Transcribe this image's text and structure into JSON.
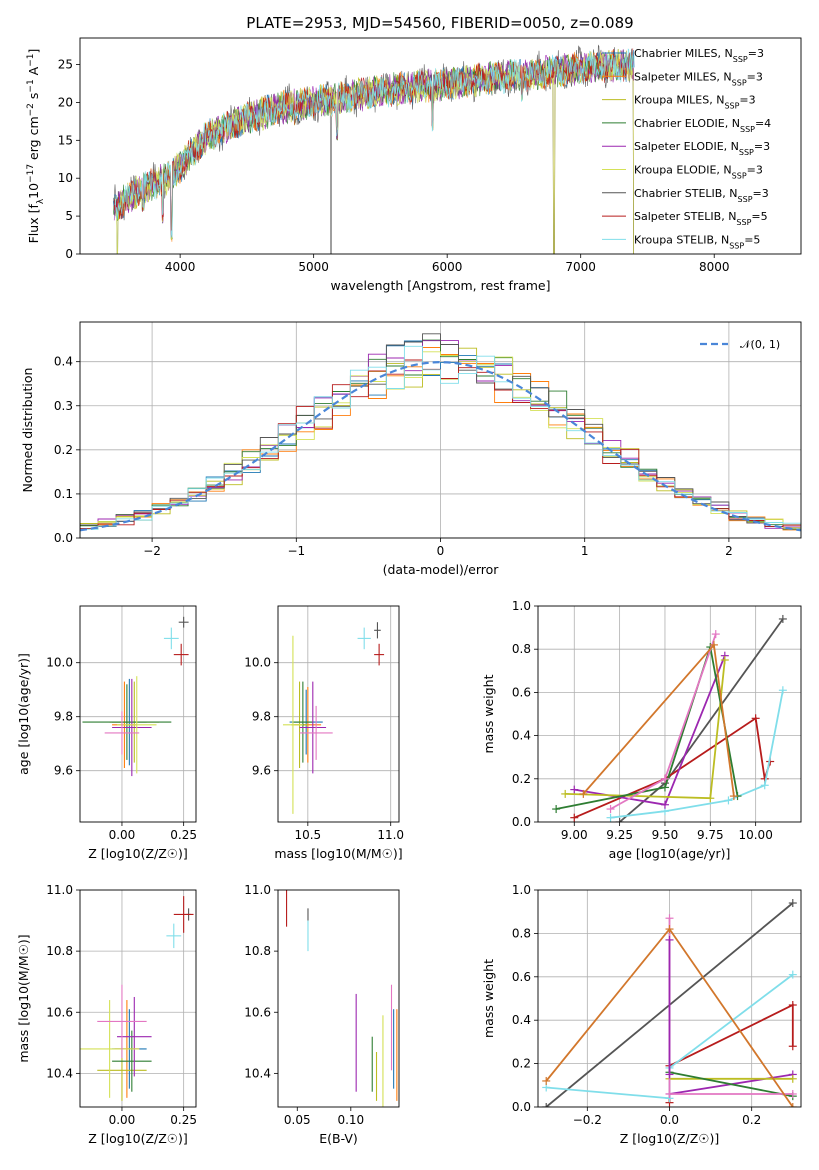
{
  "title": "PLATE=2953, MJD=54560, FIBERID=0050, z=0.089",
  "colors": [
    "#1f77b4",
    "#ff7f0e",
    "#bcbd22",
    "#2e7d32",
    "#9c27b0",
    "#d4e157",
    "#555555",
    "#b71c1c",
    "#80deea"
  ],
  "chart_data": [
    {
      "id": "spectrum",
      "type": "line",
      "xlabel": "wavelength [Angstrom, rest frame]",
      "ylabel": "Flux [f_λ10^-17 erg cm^-2 s^-1 A^-1]",
      "xlim": [
        3250,
        8650
      ],
      "ylim": [
        0,
        28.5
      ],
      "xticks": [
        4000,
        5000,
        6000,
        7000,
        8000
      ],
      "yticks": [
        0,
        5,
        10,
        15,
        20,
        25
      ],
      "legend_position": "top-right",
      "legend": [
        {
          "base": "Chabrier MILES, N",
          "sub": "SSP",
          "tail": "=3"
        },
        {
          "base": "Salpeter MILES, N",
          "sub": "SSP",
          "tail": "=3"
        },
        {
          "base": "Kroupa MILES, N",
          "sub": "SSP",
          "tail": "=3"
        },
        {
          "base": "Chabrier ELODIE, N",
          "sub": "SSP",
          "tail": "=4"
        },
        {
          "base": "Salpeter ELODIE, N",
          "sub": "SSP",
          "tail": "=3"
        },
        {
          "base": "Kroupa ELODIE, N",
          "sub": "SSP",
          "tail": "=3"
        },
        {
          "base": "Chabrier STELIB, N",
          "sub": "SSP",
          "tail": "=3"
        },
        {
          "base": "Salpeter STELIB, N",
          "sub": "SSP",
          "tail": "=5"
        },
        {
          "base": "Kroupa STELIB, N",
          "sub": "SSP",
          "tail": "=5"
        }
      ],
      "continuum": [
        [
          3500,
          6
        ],
        [
          3700,
          8.5
        ],
        [
          3900,
          10
        ],
        [
          4000,
          11.5
        ],
        [
          4200,
          15.5
        ],
        [
          4500,
          18
        ],
        [
          4800,
          19.5
        ],
        [
          5000,
          20
        ],
        [
          5500,
          21.5
        ],
        [
          6000,
          22.5
        ],
        [
          6500,
          23.5
        ],
        [
          7000,
          24.5
        ],
        [
          7400,
          25
        ]
      ],
      "dips": [
        [
          3530,
          0
        ],
        [
          3600,
          6.5
        ],
        [
          3720,
          5.5
        ],
        [
          3870,
          4
        ],
        [
          3935,
          1.5
        ],
        [
          4090,
          13
        ],
        [
          4340,
          16
        ],
        [
          4860,
          17
        ],
        [
          5130,
          0
        ],
        [
          5175,
          15
        ],
        [
          5890,
          16
        ],
        [
          6560,
          20
        ],
        [
          6800,
          0
        ],
        [
          7400,
          0
        ]
      ]
    },
    {
      "id": "residuals",
      "type": "histogram",
      "xlabel": "(data-model)/error",
      "ylabel": "Normed distribution",
      "xlim": [
        -2.5,
        2.5
      ],
      "ylim": [
        0,
        0.49
      ],
      "xticks": [
        -2,
        -1,
        0,
        1,
        2
      ],
      "yticks": [
        0.0,
        0.1,
        0.2,
        0.3,
        0.4
      ],
      "grid": true,
      "bins": 40,
      "legend_position": "top-right",
      "legend_label": "𝒩(0, 1)"
    },
    {
      "id": "age-vs-Z",
      "type": "scatter",
      "xlabel": "Z [log10(Z/Z☉)]",
      "ylabel": "age  [log10(age/yr)]",
      "xlim": [
        -0.17,
        0.3
      ],
      "ylim": [
        9.41,
        10.21
      ],
      "xticks": [
        0.0,
        0.25
      ],
      "yticks": [
        9.6,
        9.8,
        10.0
      ],
      "grid": true,
      "points": [
        {
          "x": 0.03,
          "y": 9.78,
          "ex": 0.07,
          "ey": 0.16
        },
        {
          "x": 0.01,
          "y": 9.77,
          "ex": 0.05,
          "ey": 0.16
        },
        {
          "x": 0.05,
          "y": 9.78,
          "ex": 0.1,
          "ey": 0.15
        },
        {
          "x": 0.02,
          "y": 9.78,
          "ex": 0.18,
          "ey": 0.14
        },
        {
          "x": 0.04,
          "y": 9.76,
          "ex": 0.08,
          "ey": 0.18
        },
        {
          "x": 0.06,
          "y": 9.77,
          "ex": 0.08,
          "ey": 0.18
        },
        {
          "x": 0.25,
          "y": 10.15,
          "ex": 0.02,
          "ey": 0.02
        },
        {
          "x": 0.24,
          "y": 10.03,
          "ex": 0.03,
          "ey": 0.04
        },
        {
          "x": 0.2,
          "y": 10.09,
          "ex": 0.03,
          "ey": 0.04
        },
        {
          "x": 0.0,
          "y": 9.74,
          "ex": 0.07,
          "ey": 0.08
        }
      ]
    },
    {
      "id": "age-vs-mass",
      "type": "scatter",
      "xlabel": "mass [log10(M/M☉)]",
      "ylabel": "",
      "xlim": [
        10.32,
        11.05
      ],
      "ylim": [
        9.41,
        10.21
      ],
      "xticks": [
        10.5,
        11.0
      ],
      "yticks": [
        9.6,
        9.8,
        10.0
      ],
      "grid": true,
      "points": [
        {
          "x": 10.49,
          "y": 9.78,
          "ex": 0.1,
          "ey": 0.12
        },
        {
          "x": 10.5,
          "y": 9.77,
          "ex": 0.08,
          "ey": 0.14
        },
        {
          "x": 10.45,
          "y": 9.77,
          "ex": 0.05,
          "ey": 0.16
        },
        {
          "x": 10.47,
          "y": 9.78,
          "ex": 0.06,
          "ey": 0.15
        },
        {
          "x": 10.53,
          "y": 9.76,
          "ex": 0.08,
          "ey": 0.17
        },
        {
          "x": 10.41,
          "y": 9.77,
          "ex": 0.06,
          "ey": 0.33
        },
        {
          "x": 10.92,
          "y": 10.12,
          "ex": 0.02,
          "ey": 0.03
        },
        {
          "x": 10.93,
          "y": 10.03,
          "ex": 0.03,
          "ey": 0.04
        },
        {
          "x": 10.84,
          "y": 10.09,
          "ex": 0.04,
          "ey": 0.04
        },
        {
          "x": 10.55,
          "y": 9.74,
          "ex": 0.1,
          "ey": 0.1
        }
      ]
    },
    {
      "id": "mass-weight-vs-age",
      "type": "line",
      "xlabel": "age  [log10(age/yr)]",
      "ylabel": "mass weight",
      "xlim": [
        8.8,
        10.25
      ],
      "ylim": [
        0,
        1.0
      ],
      "xticks": [
        9.0,
        9.25,
        9.5,
        9.75,
        10.0
      ],
      "yticks": [
        0.0,
        0.2,
        0.4,
        0.6,
        0.8,
        1.0
      ],
      "grid": true,
      "series": [
        {
          "color": "#555555",
          "points": [
            [
              9.25,
              0.0
            ],
            [
              9.5,
              0.18
            ],
            [
              10.15,
              0.94
            ]
          ]
        },
        {
          "color": "#b71c1c",
          "points": [
            [
              9.0,
              0.02
            ],
            [
              9.5,
              0.2
            ],
            [
              10.0,
              0.48
            ],
            [
              10.05,
              0.2
            ],
            [
              10.08,
              0.28
            ]
          ]
        },
        {
          "color": "#80deea",
          "points": [
            [
              9.2,
              0.02
            ],
            [
              9.5,
              0.05
            ],
            [
              9.85,
              0.1
            ],
            [
              10.05,
              0.17
            ],
            [
              10.15,
              0.61
            ]
          ]
        },
        {
          "color": "#9c27b0",
          "points": [
            [
              9.0,
              0.15
            ],
            [
              9.5,
              0.08
            ],
            [
              9.83,
              0.77
            ]
          ]
        },
        {
          "color": "#bcbd22",
          "points": [
            [
              8.95,
              0.13
            ],
            [
              9.75,
              0.11
            ],
            [
              9.83,
              0.75
            ]
          ]
        },
        {
          "color": "#2e7d32",
          "points": [
            [
              8.9,
              0.06
            ],
            [
              9.5,
              0.16
            ],
            [
              9.75,
              0.81
            ],
            [
              9.9,
              0.12
            ]
          ]
        },
        {
          "color": "#e377c2",
          "points": [
            [
              9.2,
              0.06
            ],
            [
              9.5,
              0.2
            ],
            [
              9.78,
              0.87
            ]
          ]
        },
        {
          "color": "#d2772c",
          "points": [
            [
              9.05,
              0.13
            ],
            [
              9.77,
              0.82
            ],
            [
              9.88,
              0.12
            ]
          ]
        }
      ]
    },
    {
      "id": "mass-vs-Z",
      "type": "scatter",
      "xlabel": "Z [log10(Z/Z☉)]",
      "ylabel": "mass [log10(M/M☉)]",
      "xlim": [
        -0.17,
        0.3
      ],
      "ylim": [
        10.29,
        11.0
      ],
      "xticks": [
        0.0,
        0.25
      ],
      "yticks": [
        10.4,
        10.6,
        10.8,
        11.0
      ],
      "grid": true,
      "points": [
        {
          "x": 0.03,
          "y": 10.48,
          "ex": 0.07,
          "ey": 0.13
        },
        {
          "x": 0.02,
          "y": 10.48,
          "ex": 0.05,
          "ey": 0.16
        },
        {
          "x": 0.0,
          "y": 10.41,
          "ex": 0.1,
          "ey": 0.1
        },
        {
          "x": 0.04,
          "y": 10.44,
          "ex": 0.08,
          "ey": 0.1
        },
        {
          "x": 0.05,
          "y": 10.52,
          "ex": 0.07,
          "ey": 0.13
        },
        {
          "x": -0.05,
          "y": 10.48,
          "ex": 0.12,
          "ey": 0.16
        },
        {
          "x": 0.27,
          "y": 10.92,
          "ex": 0.01,
          "ey": 0.02
        },
        {
          "x": 0.25,
          "y": 10.92,
          "ex": 0.04,
          "ey": 0.06
        },
        {
          "x": 0.21,
          "y": 10.85,
          "ex": 0.03,
          "ey": 0.04
        },
        {
          "x": 0.0,
          "y": 10.57,
          "ex": 0.1,
          "ey": 0.12
        }
      ]
    },
    {
      "id": "mass-vs-EBV",
      "type": "scatter",
      "xlabel": "E(B-V)",
      "ylabel": "",
      "xlim": [
        0.032,
        0.145
      ],
      "ylim": [
        10.29,
        11.0
      ],
      "xticks": [
        0.05,
        0.1
      ],
      "yticks": [
        10.4,
        10.6,
        10.8,
        11.0
      ],
      "grid": false,
      "points": [
        {
          "x": 0.14,
          "y": 10.48,
          "ex": 0,
          "ey": 0.13
        },
        {
          "x": 0.143,
          "y": 10.46,
          "ex": 0,
          "ey": 0.15
        },
        {
          "x": 0.124,
          "y": 10.39,
          "ex": 0,
          "ey": 0.08
        },
        {
          "x": 0.12,
          "y": 10.43,
          "ex": 0,
          "ey": 0.09
        },
        {
          "x": 0.105,
          "y": 10.5,
          "ex": 0,
          "ey": 0.16
        },
        {
          "x": 0.13,
          "y": 10.43,
          "ex": 0,
          "ey": 0.16
        },
        {
          "x": 0.06,
          "y": 10.92,
          "ex": 0,
          "ey": 0.02
        },
        {
          "x": 0.04,
          "y": 10.94,
          "ex": 0,
          "ey": 0.06
        },
        {
          "x": 0.06,
          "y": 10.85,
          "ex": 0,
          "ey": 0.05
        },
        {
          "x": 0.138,
          "y": 10.55,
          "ex": 0,
          "ey": 0.14
        }
      ]
    },
    {
      "id": "mass-weight-vs-Z",
      "type": "line",
      "xlabel": "Z [log10(Z/Z☉)]",
      "ylabel": "mass weight",
      "xlim": [
        -0.32,
        0.32
      ],
      "ylim": [
        0,
        1.0
      ],
      "xticks": [
        -0.2,
        0.0,
        0.2
      ],
      "yticks": [
        0.0,
        0.2,
        0.4,
        0.6,
        0.8,
        1.0
      ],
      "grid": true,
      "series": [
        {
          "color": "#555555",
          "points": [
            [
              -0.3,
              0.0
            ],
            [
              0.3,
              0.94
            ]
          ]
        },
        {
          "color": "#b71c1c",
          "points": [
            [
              0.0,
              0.02
            ],
            [
              0.0,
              0.19
            ],
            [
              0.3,
              0.47
            ],
            [
              0.3,
              0.28
            ]
          ]
        },
        {
          "color": "#80deea",
          "points": [
            [
              -0.3,
              0.09
            ],
            [
              0.0,
              0.04
            ],
            [
              0.0,
              0.18
            ],
            [
              0.3,
              0.61
            ]
          ]
        },
        {
          "color": "#9c27b0",
          "points": [
            [
              0.0,
              0.06
            ],
            [
              0.3,
              0.15
            ]
          ]
        },
        {
          "color": "#bcbd22",
          "points": [
            [
              0.0,
              0.13
            ],
            [
              0.3,
              0.13
            ]
          ]
        },
        {
          "color": "#2e7d32",
          "points": [
            [
              0.0,
              0.16
            ],
            [
              0.3,
              0.05
            ]
          ]
        },
        {
          "color": "#e377c2",
          "points": [
            [
              0.0,
              0.87
            ],
            [
              0.0,
              0.06
            ],
            [
              0.3,
              0.06
            ]
          ]
        },
        {
          "color": "#9c27b0",
          "points": [
            [
              0.0,
              0.77
            ],
            [
              0.0,
              0.15
            ]
          ]
        },
        {
          "color": "#d2772c",
          "points": [
            [
              -0.3,
              0.12
            ],
            [
              0.0,
              0.82
            ],
            [
              0.3,
              0.0
            ]
          ]
        }
      ]
    }
  ]
}
